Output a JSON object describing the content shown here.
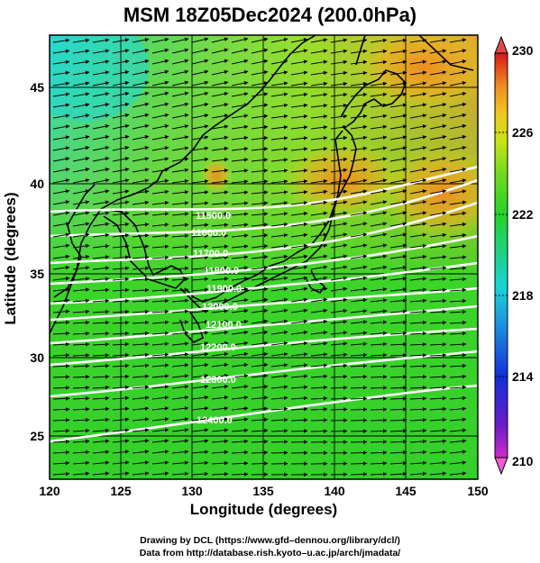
{
  "title": "MSM 18Z05Dec2024 (200.0hPa)",
  "x_axis": {
    "label": "Longitude (degrees)",
    "range": [
      120,
      150
    ],
    "ticks": [
      "120",
      "125",
      "130",
      "135",
      "140",
      "145",
      "150"
    ]
  },
  "y_axis": {
    "label": "Latitude  (degrees)",
    "range": [
      22.5,
      47.5
    ],
    "ticks": [
      "25",
      "30",
      "35",
      "40",
      "45"
    ]
  },
  "colorbar": {
    "range": [
      210,
      230
    ],
    "ticks": [
      "210",
      "214",
      "218",
      "222",
      "226",
      "230"
    ],
    "colors": [
      "#d12ac8",
      "#6a1bc8",
      "#1030d8",
      "#1c8ae0",
      "#19d3d6",
      "#1ed28c",
      "#22d42a",
      "#72d91c",
      "#c6e416",
      "#f0c820",
      "#f08a20",
      "#e84418",
      "#d81818"
    ]
  },
  "contour_labels": [
    "11500.0",
    "11600.0",
    "11700.0",
    "11800.0",
    "11900.0",
    "12000.0",
    "12100.0",
    "12200.0",
    "12300.0",
    "12400.0"
  ],
  "credit_line1": "Drawing by DCL (https://www.gfd–dennou.org/library/dcl/)",
  "credit_line2": "Data from http://database.rish.kyoto–u.ac.jp/arch/jmadata/"
}
